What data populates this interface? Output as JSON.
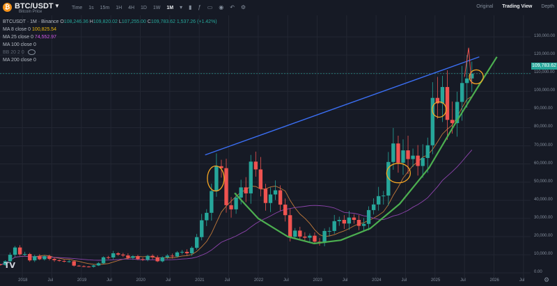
{
  "header": {
    "symbol": "BTC/USDT",
    "subtitle": "Bitcoin Price",
    "timeframes": [
      "Time",
      "1s",
      "15m",
      "1H",
      "4H",
      "1D",
      "1W",
      "1M"
    ],
    "active_timeframe": "1M",
    "views": [
      "Original",
      "Trading View",
      "Depth"
    ],
    "active_view": "Trading View"
  },
  "legend": {
    "title": "BTCUSDT · 1M · Binance",
    "ohlc": {
      "o_label": "O",
      "o": "108,246.36",
      "h_label": "H",
      "h": "109,820.02",
      "l_label": "L",
      "l": "107,255.00",
      "c_label": "C",
      "c": "109,783.62",
      "change": "1,537.26 (+1.42%)"
    },
    "ma8": {
      "label": "MA 8 close 0",
      "value": "100,825.54",
      "color": "#f0b90b"
    },
    "ma25": {
      "label": "MA 25 close 0",
      "value": "74,552.97",
      "color": "#b64fd6"
    },
    "ma100": {
      "label": "MA 100 close 0"
    },
    "bb": {
      "label": "BB 20 2 0"
    },
    "ma200": {
      "label": "MA 200 close 0"
    }
  },
  "price_tag": "109,783.62",
  "colors": {
    "up": "#26a69a",
    "down": "#ef5350",
    "trend_line": "#3b6ff5",
    "curve": "#4caf50",
    "circle": "#f5a623",
    "ma_fast": "#c27a3a",
    "ma_slow": "#8e44ad"
  },
  "chart_data": {
    "type": "candlestick",
    "interval": "1M",
    "y_ticks": [
      "130,000.00",
      "120,000.00",
      "110,000.00",
      "100,000.00",
      "90,000.00",
      "80,000.00",
      "70,000.00",
      "60,000.00",
      "50,000.00",
      "40,000.00",
      "30,000.00",
      "20,000.00",
      "10,000.00",
      "0.00"
    ],
    "ylim": [
      -3000,
      135000
    ],
    "x_ticks": [
      [
        "2018",
        2018.0
      ],
      [
        "Jul",
        2018.5
      ],
      [
        "2019",
        2019.0
      ],
      [
        "Jul",
        2019.5
      ],
      [
        "2020",
        2020.0
      ],
      [
        "Jul",
        2020.5
      ],
      [
        "2021",
        2021.0
      ],
      [
        "Jul",
        2021.5
      ],
      [
        "2022",
        2022.0
      ],
      [
        "Jul",
        2022.5
      ],
      [
        "2023",
        2023.0
      ],
      [
        "Jul",
        2023.5
      ],
      [
        "2024",
        2024.0
      ],
      [
        "Jul",
        2024.5
      ],
      [
        "2025",
        2025.0
      ],
      [
        "Jul",
        2025.5
      ],
      [
        "2026",
        2026.0
      ],
      [
        "Jul",
        2026.5
      ]
    ],
    "xlim": [
      2017.62,
      2026.62
    ],
    "closes": [
      4400,
      6400,
      10000,
      14000,
      10200,
      10400,
      6900,
      9200,
      7500,
      9200,
      7700,
      7000,
      6600,
      6300,
      6400,
      4000,
      3700,
      3500,
      3400,
      4100,
      5300,
      8600,
      8500,
      10800,
      10100,
      9600,
      8300,
      9200,
      7600,
      7200,
      9400,
      8600,
      6400,
      8600,
      9500,
      9100,
      11300,
      11600,
      10800,
      13800,
      19700,
      29000,
      33100,
      45100,
      58800,
      57700,
      37300,
      35000,
      41500,
      47100,
      43800,
      61300,
      57000,
      46300,
      38500,
      43200,
      45500,
      37600,
      31800,
      19900,
      23300,
      20000,
      19400,
      20500,
      17200,
      16500,
      23100,
      23100,
      28500,
      29200,
      27200,
      30500,
      29200,
      25900,
      27000,
      34600,
      37700,
      42300,
      42600,
      61100,
      71300,
      60700,
      67500,
      62700,
      64600,
      58900,
      63300,
      70300,
      96400,
      93400,
      102400,
      84300,
      82500,
      94200,
      104600,
      107100,
      109783
    ],
    "start": "2017-08",
    "ma_fast_note": "MA 8 close",
    "ma_slow_note": "MA 25 close"
  }
}
